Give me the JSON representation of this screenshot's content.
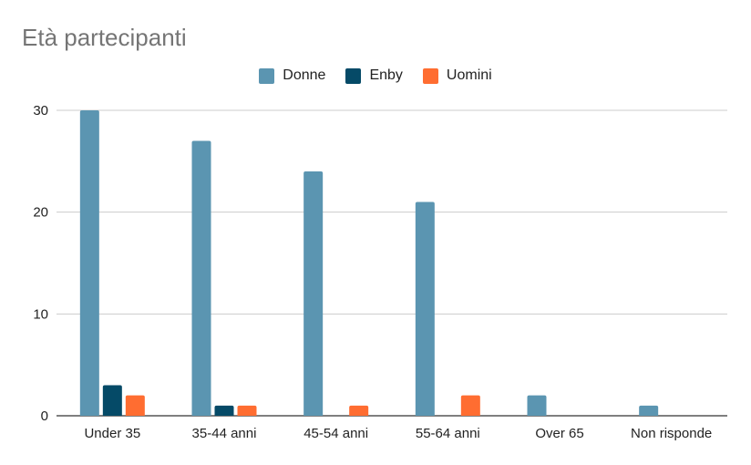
{
  "chart_data": {
    "type": "bar",
    "title": "Età partecipanti",
    "categories": [
      "Under 35",
      "35-44 anni",
      "45-54 anni",
      "55-64 anni",
      "Over 65",
      "Non risponde"
    ],
    "series": [
      {
        "name": "Donne",
        "color": "#5b95b1",
        "values": [
          30,
          27,
          24,
          21,
          2,
          1
        ]
      },
      {
        "name": "Enby",
        "color": "#054a67",
        "values": [
          3,
          1,
          0,
          0,
          0,
          0
        ]
      },
      {
        "name": "Uomini",
        "color": "#ff6d31",
        "values": [
          2,
          1,
          1,
          2,
          0,
          0
        ]
      }
    ],
    "yticks": [
      0,
      10,
      20,
      30
    ],
    "ylim": [
      0,
      30
    ],
    "grid": true,
    "legend_position": "top-center",
    "xlabel": "",
    "ylabel": ""
  }
}
